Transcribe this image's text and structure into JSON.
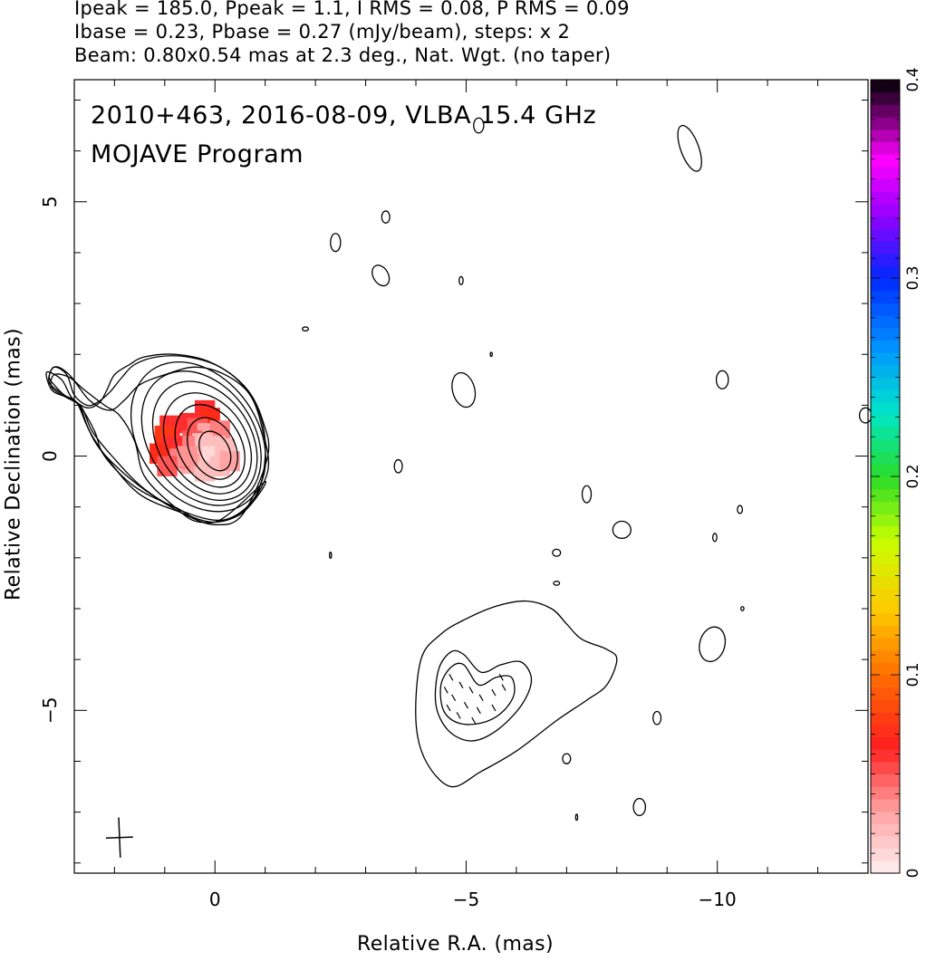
{
  "header": {
    "line1": "Ipeak = 185.0, Ppeak = 1.1, I RMS = 0.08, P RMS = 0.09",
    "line2": "Ibase = 0.23, Pbase = 0.27 (mJy/beam), steps: x 2",
    "line3": "Beam: 0.80x0.54 mas at 2.3 deg., Nat. Wgt. (no taper)"
  },
  "plot_title": {
    "line1": "2010+463, 2016-08-09, VLBA 15.4 GHz",
    "line2": "MOJAVE Program"
  },
  "chart_data": {
    "type": "contour",
    "xlabel": "Relative R.A. (mas)",
    "ylabel": "Relative Declination (mas)",
    "xlim": [
      2.8,
      -13.0
    ],
    "ylim": [
      -8.2,
      7.4
    ],
    "x_ticks": [
      0,
      -5,
      -10
    ],
    "x_tick_labels": [
      "0",
      "−5",
      "−10"
    ],
    "y_ticks": [
      5,
      0,
      -5
    ],
    "y_tick_labels": [
      "5",
      "0",
      "−5"
    ],
    "x_minor_step": 1,
    "y_minor_step": 1,
    "colorbar": {
      "range": [
        0,
        0.4
      ],
      "ticks": [
        0,
        0.1,
        0.2,
        0.3,
        0.4
      ],
      "tick_labels": [
        "0",
        "0.1",
        "0.2",
        "0.3",
        "0.4"
      ]
    },
    "core_contours": [
      {
        "cx": 0.0,
        "cy": 0.1,
        "rx": 0.28,
        "ry": 0.42,
        "rot": -28
      },
      {
        "cx": 0.05,
        "cy": 0.15,
        "rx": 0.45,
        "ry": 0.65,
        "rot": -28
      },
      {
        "cx": 0.1,
        "cy": 0.2,
        "rx": 0.62,
        "ry": 0.88,
        "rot": -30
      },
      {
        "cx": 0.15,
        "cy": 0.25,
        "rx": 0.78,
        "ry": 1.08,
        "rot": -32
      },
      {
        "cx": 0.2,
        "cy": 0.3,
        "rx": 0.92,
        "ry": 1.28,
        "rot": -33
      },
      {
        "cx": 0.27,
        "cy": 0.35,
        "rx": 1.05,
        "ry": 1.45,
        "rot": -34
      },
      {
        "cx": 0.33,
        "cy": 0.38,
        "rx": 1.18,
        "ry": 1.62,
        "rot": -35
      }
    ],
    "core_outer_contours": [
      [
        [
          -1.0,
          -0.5
        ],
        [
          -0.5,
          -1.15
        ],
        [
          0.3,
          -1.3
        ],
        [
          0.8,
          -1.0
        ],
        [
          1.4,
          -0.4
        ],
        [
          1.6,
          0.3
        ],
        [
          1.9,
          0.8
        ],
        [
          2.2,
          1.0
        ],
        [
          2.6,
          1.3
        ],
        [
          2.9,
          1.55
        ],
        [
          3.2,
          1.6
        ],
        [
          3.25,
          1.35
        ],
        [
          2.95,
          1.15
        ],
        [
          2.7,
          1.0
        ],
        [
          2.4,
          0.5
        ],
        [
          2.2,
          0.0
        ],
        [
          1.6,
          -0.6
        ],
        [
          0.8,
          -1.0
        ],
        [
          0.0,
          -1.3
        ]
      ],
      [
        [
          -1.05,
          -0.3
        ],
        [
          -0.95,
          0.5
        ],
        [
          -0.7,
          1.2
        ],
        [
          -0.2,
          1.6
        ],
        [
          0.4,
          1.75
        ],
        [
          1.0,
          1.6
        ],
        [
          1.5,
          1.4
        ],
        [
          1.8,
          1.1
        ],
        [
          2.1,
          0.9
        ],
        [
          2.5,
          1.1
        ],
        [
          2.9,
          1.6
        ],
        [
          3.2,
          1.75
        ],
        [
          3.3,
          1.45
        ],
        [
          3.0,
          1.2
        ],
        [
          2.7,
          1.0
        ],
        [
          2.5,
          0.5
        ],
        [
          2.1,
          -0.1
        ],
        [
          1.5,
          -0.75
        ],
        [
          0.7,
          -1.1
        ],
        [
          0.0,
          -1.3
        ],
        [
          -0.6,
          -1.05
        ]
      ],
      [
        [
          -1.0,
          0.0
        ],
        [
          -0.9,
          0.8
        ],
        [
          -0.5,
          1.45
        ],
        [
          0.1,
          1.85
        ],
        [
          0.8,
          2.0
        ],
        [
          1.4,
          1.95
        ],
        [
          1.7,
          1.8
        ],
        [
          2.0,
          1.6
        ],
        [
          2.15,
          1.3
        ],
        [
          2.3,
          1.05
        ],
        [
          2.55,
          0.95
        ],
        [
          2.85,
          1.15
        ],
        [
          3.05,
          1.5
        ],
        [
          3.35,
          1.65
        ],
        [
          3.25,
          1.3
        ],
        [
          2.95,
          1.15
        ],
        [
          2.65,
          0.95
        ],
        [
          2.45,
          0.5
        ],
        [
          2.05,
          0.0
        ],
        [
          1.4,
          -0.65
        ],
        [
          0.6,
          -1.1
        ],
        [
          -0.2,
          -1.25
        ],
        [
          -0.8,
          -0.8
        ]
      ]
    ],
    "core_outer_contours_alt": [
      [
        [
          -1.05,
          0.0
        ],
        [
          -0.95,
          0.7
        ],
        [
          -0.65,
          1.3
        ],
        [
          -0.1,
          1.75
        ],
        [
          0.55,
          1.95
        ],
        [
          1.15,
          1.95
        ],
        [
          1.6,
          1.8
        ],
        [
          1.85,
          1.55
        ],
        [
          2.1,
          1.25
        ],
        [
          2.35,
          1.05
        ],
        [
          2.55,
          1.0
        ],
        [
          2.8,
          1.2
        ],
        [
          2.95,
          1.6
        ],
        [
          3.2,
          1.75
        ],
        [
          3.3,
          1.55
        ],
        [
          3.2,
          1.4
        ],
        [
          3.0,
          1.2
        ],
        [
          2.75,
          1.05
        ],
        [
          2.55,
          0.6
        ],
        [
          2.3,
          0.15
        ],
        [
          1.8,
          -0.35
        ],
        [
          1.2,
          -0.8
        ],
        [
          0.6,
          -1.15
        ],
        [
          0.0,
          -1.35
        ],
        [
          -0.55,
          -1.15
        ]
      ]
    ],
    "jet_contours": [
      [
        [
          -4.1,
          -4.0
        ],
        [
          -4.0,
          -5.2
        ],
        [
          -4.2,
          -6.0
        ],
        [
          -4.7,
          -6.5
        ],
        [
          -5.3,
          -6.2
        ],
        [
          -6.0,
          -5.8
        ],
        [
          -6.8,
          -5.2
        ],
        [
          -7.4,
          -4.8
        ],
        [
          -7.8,
          -4.5
        ],
        [
          -8.0,
          -4.0
        ],
        [
          -7.8,
          -3.8
        ],
        [
          -7.3,
          -3.6
        ],
        [
          -7.0,
          -3.3
        ],
        [
          -6.7,
          -3.0
        ],
        [
          -6.2,
          -2.85
        ],
        [
          -5.6,
          -2.95
        ],
        [
          -5.0,
          -3.2
        ],
        [
          -4.5,
          -3.5
        ]
      ],
      [
        [
          -4.45,
          -4.2
        ],
        [
          -4.4,
          -4.9
        ],
        [
          -4.65,
          -5.4
        ],
        [
          -5.1,
          -5.6
        ],
        [
          -5.6,
          -5.4
        ],
        [
          -6.1,
          -4.9
        ],
        [
          -6.3,
          -4.4
        ],
        [
          -6.1,
          -4.05
        ],
        [
          -5.7,
          -4.1
        ],
        [
          -5.3,
          -4.25
        ],
        [
          -4.95,
          -3.9
        ],
        [
          -4.7,
          -3.85
        ]
      ],
      [
        [
          -4.5,
          -4.5
        ],
        [
          -4.55,
          -5.0
        ],
        [
          -4.85,
          -5.25
        ],
        [
          -5.3,
          -5.25
        ],
        [
          -5.7,
          -5.05
        ],
        [
          -5.95,
          -4.7
        ],
        [
          -5.9,
          -4.35
        ],
        [
          -5.6,
          -4.35
        ],
        [
          -5.25,
          -4.5
        ],
        [
          -4.95,
          -4.1
        ],
        [
          -4.7,
          -4.15
        ]
      ]
    ],
    "small_contours": [
      {
        "cx": -9.45,
        "cy": 6.05,
        "rx": 0.18,
        "ry": 0.48,
        "rot": -20
      },
      {
        "cx": -3.4,
        "cy": 4.7,
        "rx": 0.08,
        "ry": 0.12,
        "rot": 0
      },
      {
        "cx": -2.4,
        "cy": 4.2,
        "rx": 0.1,
        "ry": 0.18,
        "rot": 0
      },
      {
        "cx": -3.3,
        "cy": 3.55,
        "rx": 0.15,
        "ry": 0.22,
        "rot": -30
      },
      {
        "cx": -4.9,
        "cy": 3.45,
        "rx": 0.04,
        "ry": 0.08,
        "rot": 0
      },
      {
        "cx": -1.8,
        "cy": 2.5,
        "rx": 0.06,
        "ry": 0.04,
        "rot": 0
      },
      {
        "cx": -5.5,
        "cy": 2.0,
        "rx": 0.02,
        "ry": 0.04,
        "rot": 0
      },
      {
        "cx": -4.95,
        "cy": 1.3,
        "rx": 0.22,
        "ry": 0.35,
        "rot": -15
      },
      {
        "cx": -10.1,
        "cy": 1.5,
        "rx": 0.12,
        "ry": 0.18,
        "rot": 0
      },
      {
        "cx": -5.25,
        "cy": 6.5,
        "rx": 0.1,
        "ry": 0.15,
        "rot": 0
      },
      {
        "cx": -3.65,
        "cy": -0.2,
        "rx": 0.08,
        "ry": 0.13,
        "rot": 0
      },
      {
        "cx": -7.4,
        "cy": -0.75,
        "rx": 0.09,
        "ry": 0.17,
        "rot": 0
      },
      {
        "cx": -8.1,
        "cy": -1.45,
        "rx": 0.18,
        "ry": 0.17,
        "rot": 0
      },
      {
        "cx": -6.8,
        "cy": -1.9,
        "rx": 0.08,
        "ry": 0.07,
        "rot": 0
      },
      {
        "cx": -6.8,
        "cy": -2.5,
        "rx": 0.06,
        "ry": 0.04,
        "rot": 0
      },
      {
        "cx": -10.45,
        "cy": -1.05,
        "rx": 0.05,
        "ry": 0.08,
        "rot": 0
      },
      {
        "cx": -9.95,
        "cy": -1.6,
        "rx": 0.04,
        "ry": 0.08,
        "rot": 0
      },
      {
        "cx": -9.9,
        "cy": -3.7,
        "rx": 0.25,
        "ry": 0.35,
        "rot": 15
      },
      {
        "cx": -10.5,
        "cy": -3.0,
        "rx": 0.03,
        "ry": 0.04,
        "rot": 0
      },
      {
        "cx": -8.8,
        "cy": -5.15,
        "rx": 0.08,
        "ry": 0.13,
        "rot": 0
      },
      {
        "cx": -7.0,
        "cy": -5.95,
        "rx": 0.08,
        "ry": 0.1,
        "rot": 0
      },
      {
        "cx": -8.45,
        "cy": -6.9,
        "rx": 0.12,
        "ry": 0.17,
        "rot": 0
      },
      {
        "cx": -7.2,
        "cy": -7.1,
        "rx": 0.02,
        "ry": 0.06,
        "rot": 0
      },
      {
        "cx": -2.3,
        "cy": -1.95,
        "rx": 0.02,
        "ry": 0.06,
        "rot": 0
      },
      {
        "cx": -12.95,
        "cy": 0.8,
        "rx": 0.12,
        "ry": 0.15,
        "rot": 0
      }
    ],
    "polarization_pixels": [
      {
        "x": 0.2,
        "y": 0.9,
        "v": 0.06
      },
      {
        "x": 0.1,
        "y": 0.75,
        "v": 0.07
      },
      {
        "x": 0.5,
        "y": 0.65,
        "v": 0.06
      },
      {
        "x": 0.35,
        "y": 0.55,
        "v": 0.05
      },
      {
        "x": 0.15,
        "y": 0.45,
        "v": 0.03
      },
      {
        "x": -0.1,
        "y": 0.5,
        "v": 0.04
      },
      {
        "x": 0.45,
        "y": 0.3,
        "v": 0.05
      },
      {
        "x": 0.25,
        "y": 0.25,
        "v": 0.02
      },
      {
        "x": 0.0,
        "y": 0.2,
        "v": 0.02
      },
      {
        "x": 0.6,
        "y": 0.2,
        "v": 0.04
      },
      {
        "x": 0.3,
        "y": 0.0,
        "v": 0.02
      },
      {
        "x": 0.05,
        "y": 0.0,
        "v": 0.01
      },
      {
        "x": -0.2,
        "y": 0.15,
        "v": 0.02
      },
      {
        "x": 0.5,
        "y": -0.15,
        "v": 0.03
      },
      {
        "x": -0.1,
        "y": -0.2,
        "v": 0.02
      },
      {
        "x": 0.2,
        "y": -0.3,
        "v": 0.02
      },
      {
        "x": -0.3,
        "y": -0.1,
        "v": 0.03
      },
      {
        "x": 0.9,
        "y": 0.6,
        "v": 0.06
      },
      {
        "x": 1.0,
        "y": 0.4,
        "v": 0.075
      },
      {
        "x": 0.85,
        "y": 0.2,
        "v": 0.06
      },
      {
        "x": 1.1,
        "y": 0.05,
        "v": 0.07
      },
      {
        "x": 0.7,
        "y": -0.05,
        "v": 0.04
      },
      {
        "x": 0.95,
        "y": -0.2,
        "v": 0.05
      },
      {
        "x": 0.55,
        "y": 0.0,
        "v": 0.035
      }
    ],
    "evpa_ticks": [
      {
        "x": -4.7,
        "y": -4.35,
        "angle": 60
      },
      {
        "x": -4.9,
        "y": -4.5,
        "angle": 60
      },
      {
        "x": -5.1,
        "y": -4.6,
        "angle": 60
      },
      {
        "x": -5.3,
        "y": -4.75,
        "angle": 60
      },
      {
        "x": -5.55,
        "y": -4.65,
        "angle": 60
      },
      {
        "x": -5.75,
        "y": -4.55,
        "angle": 60
      },
      {
        "x": -4.75,
        "y": -4.75,
        "angle": 60
      },
      {
        "x": -5.0,
        "y": -4.9,
        "angle": 60
      },
      {
        "x": -5.25,
        "y": -5.0,
        "angle": 60
      },
      {
        "x": -5.55,
        "y": -4.95,
        "angle": 60
      },
      {
        "x": -4.85,
        "y": -5.1,
        "angle": 60
      },
      {
        "x": -5.15,
        "y": -5.2,
        "angle": 60
      },
      {
        "x": -4.6,
        "y": -4.6,
        "angle": 60
      },
      {
        "x": -5.7,
        "y": -4.35,
        "angle": 60
      },
      {
        "x": -4.65,
        "y": -4.95,
        "angle": 60
      }
    ],
    "beam": {
      "x": 1.9,
      "y": -7.5,
      "major": 0.8,
      "minor": 0.54,
      "pa": 2.3
    }
  }
}
